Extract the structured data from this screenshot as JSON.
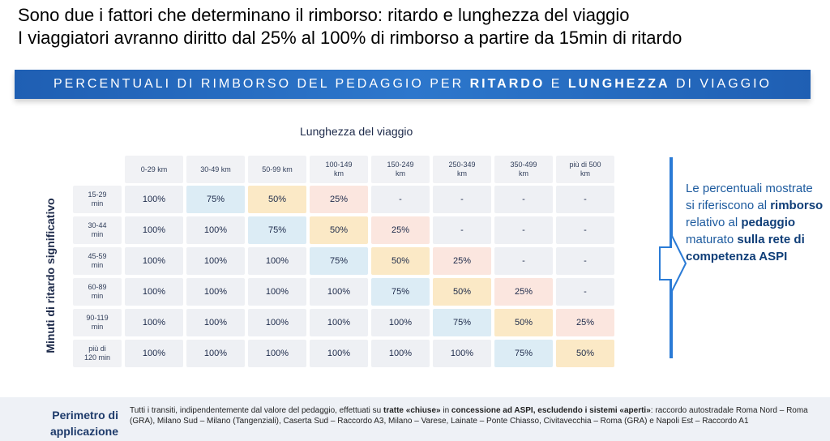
{
  "headline": {
    "line1": "Sono due i fattori che determinano il rimborso: ritardo e lunghezza del viaggio",
    "line2": "I viaggiatori avranno diritto dal 25% al 100% di rimborso a partire da 15min di ritardo"
  },
  "banner": {
    "part1": "PERCENTUALI DI RIMBORSO DEL PEDAGGIO PER ",
    "part2": "RITARDO",
    "part3": " E ",
    "part4": "LUNGHEZZA",
    "part5": " DI VIAGGIO"
  },
  "table": {
    "column_title": "Lunghezza del viaggio",
    "row_title": "Minuti di ritardo significativo",
    "columns": [
      "0-29 km",
      "30-49 km",
      "50-99 km",
      "100-149 km",
      "150-249 km",
      "250-349 km",
      "350-499 km",
      "più di 500 km"
    ],
    "rows": [
      "15-29 min",
      "30-44 min",
      "45-59 min",
      "60-89 min",
      "90-119 min",
      "più di 120 min"
    ],
    "values": [
      [
        "100%",
        "75%",
        "50%",
        "25%",
        "-",
        "-",
        "-",
        "-"
      ],
      [
        "100%",
        "100%",
        "75%",
        "50%",
        "25%",
        "-",
        "-",
        "-"
      ],
      [
        "100%",
        "100%",
        "100%",
        "75%",
        "50%",
        "25%",
        "-",
        "-"
      ],
      [
        "100%",
        "100%",
        "100%",
        "100%",
        "75%",
        "50%",
        "25%",
        "-"
      ],
      [
        "100%",
        "100%",
        "100%",
        "100%",
        "100%",
        "75%",
        "50%",
        "25%"
      ],
      [
        "100%",
        "100%",
        "100%",
        "100%",
        "100%",
        "100%",
        "75%",
        "50%"
      ]
    ],
    "colors": {
      "100%": "#eef0f4",
      "75%": "#dcecf5",
      "50%": "#fbe9c6",
      "25%": "#fbe6df",
      "-": "#eef0f4"
    }
  },
  "note": {
    "t1": "Le percentuali mostrate si riferiscono al ",
    "t2": "rimborso",
    "t3": " relativo al ",
    "t4": "pedaggio",
    "t5": " maturato ",
    "t6": "sulla rete di competenza ASPI"
  },
  "footer": {
    "title": "Perimetro di applicazione",
    "t1": "Tutti i transiti, indipendentemente dal valore del pedaggio, effettuati su ",
    "t2": "tratte «chiuse»",
    "t3": " in ",
    "t4": "concessione ad ASPI, escludendo i sistemi «aperti»",
    "t5": ": raccordo autostradale Roma Nord – Roma (GRA), Milano Sud – Milano (Tangenziali), Caserta Sud – Raccordo A3, Milano – Varese, Lainate – Ponte Chiasso, Civitavecchia – Roma (GRA) e Napoli Est – Raccordo A1"
  }
}
